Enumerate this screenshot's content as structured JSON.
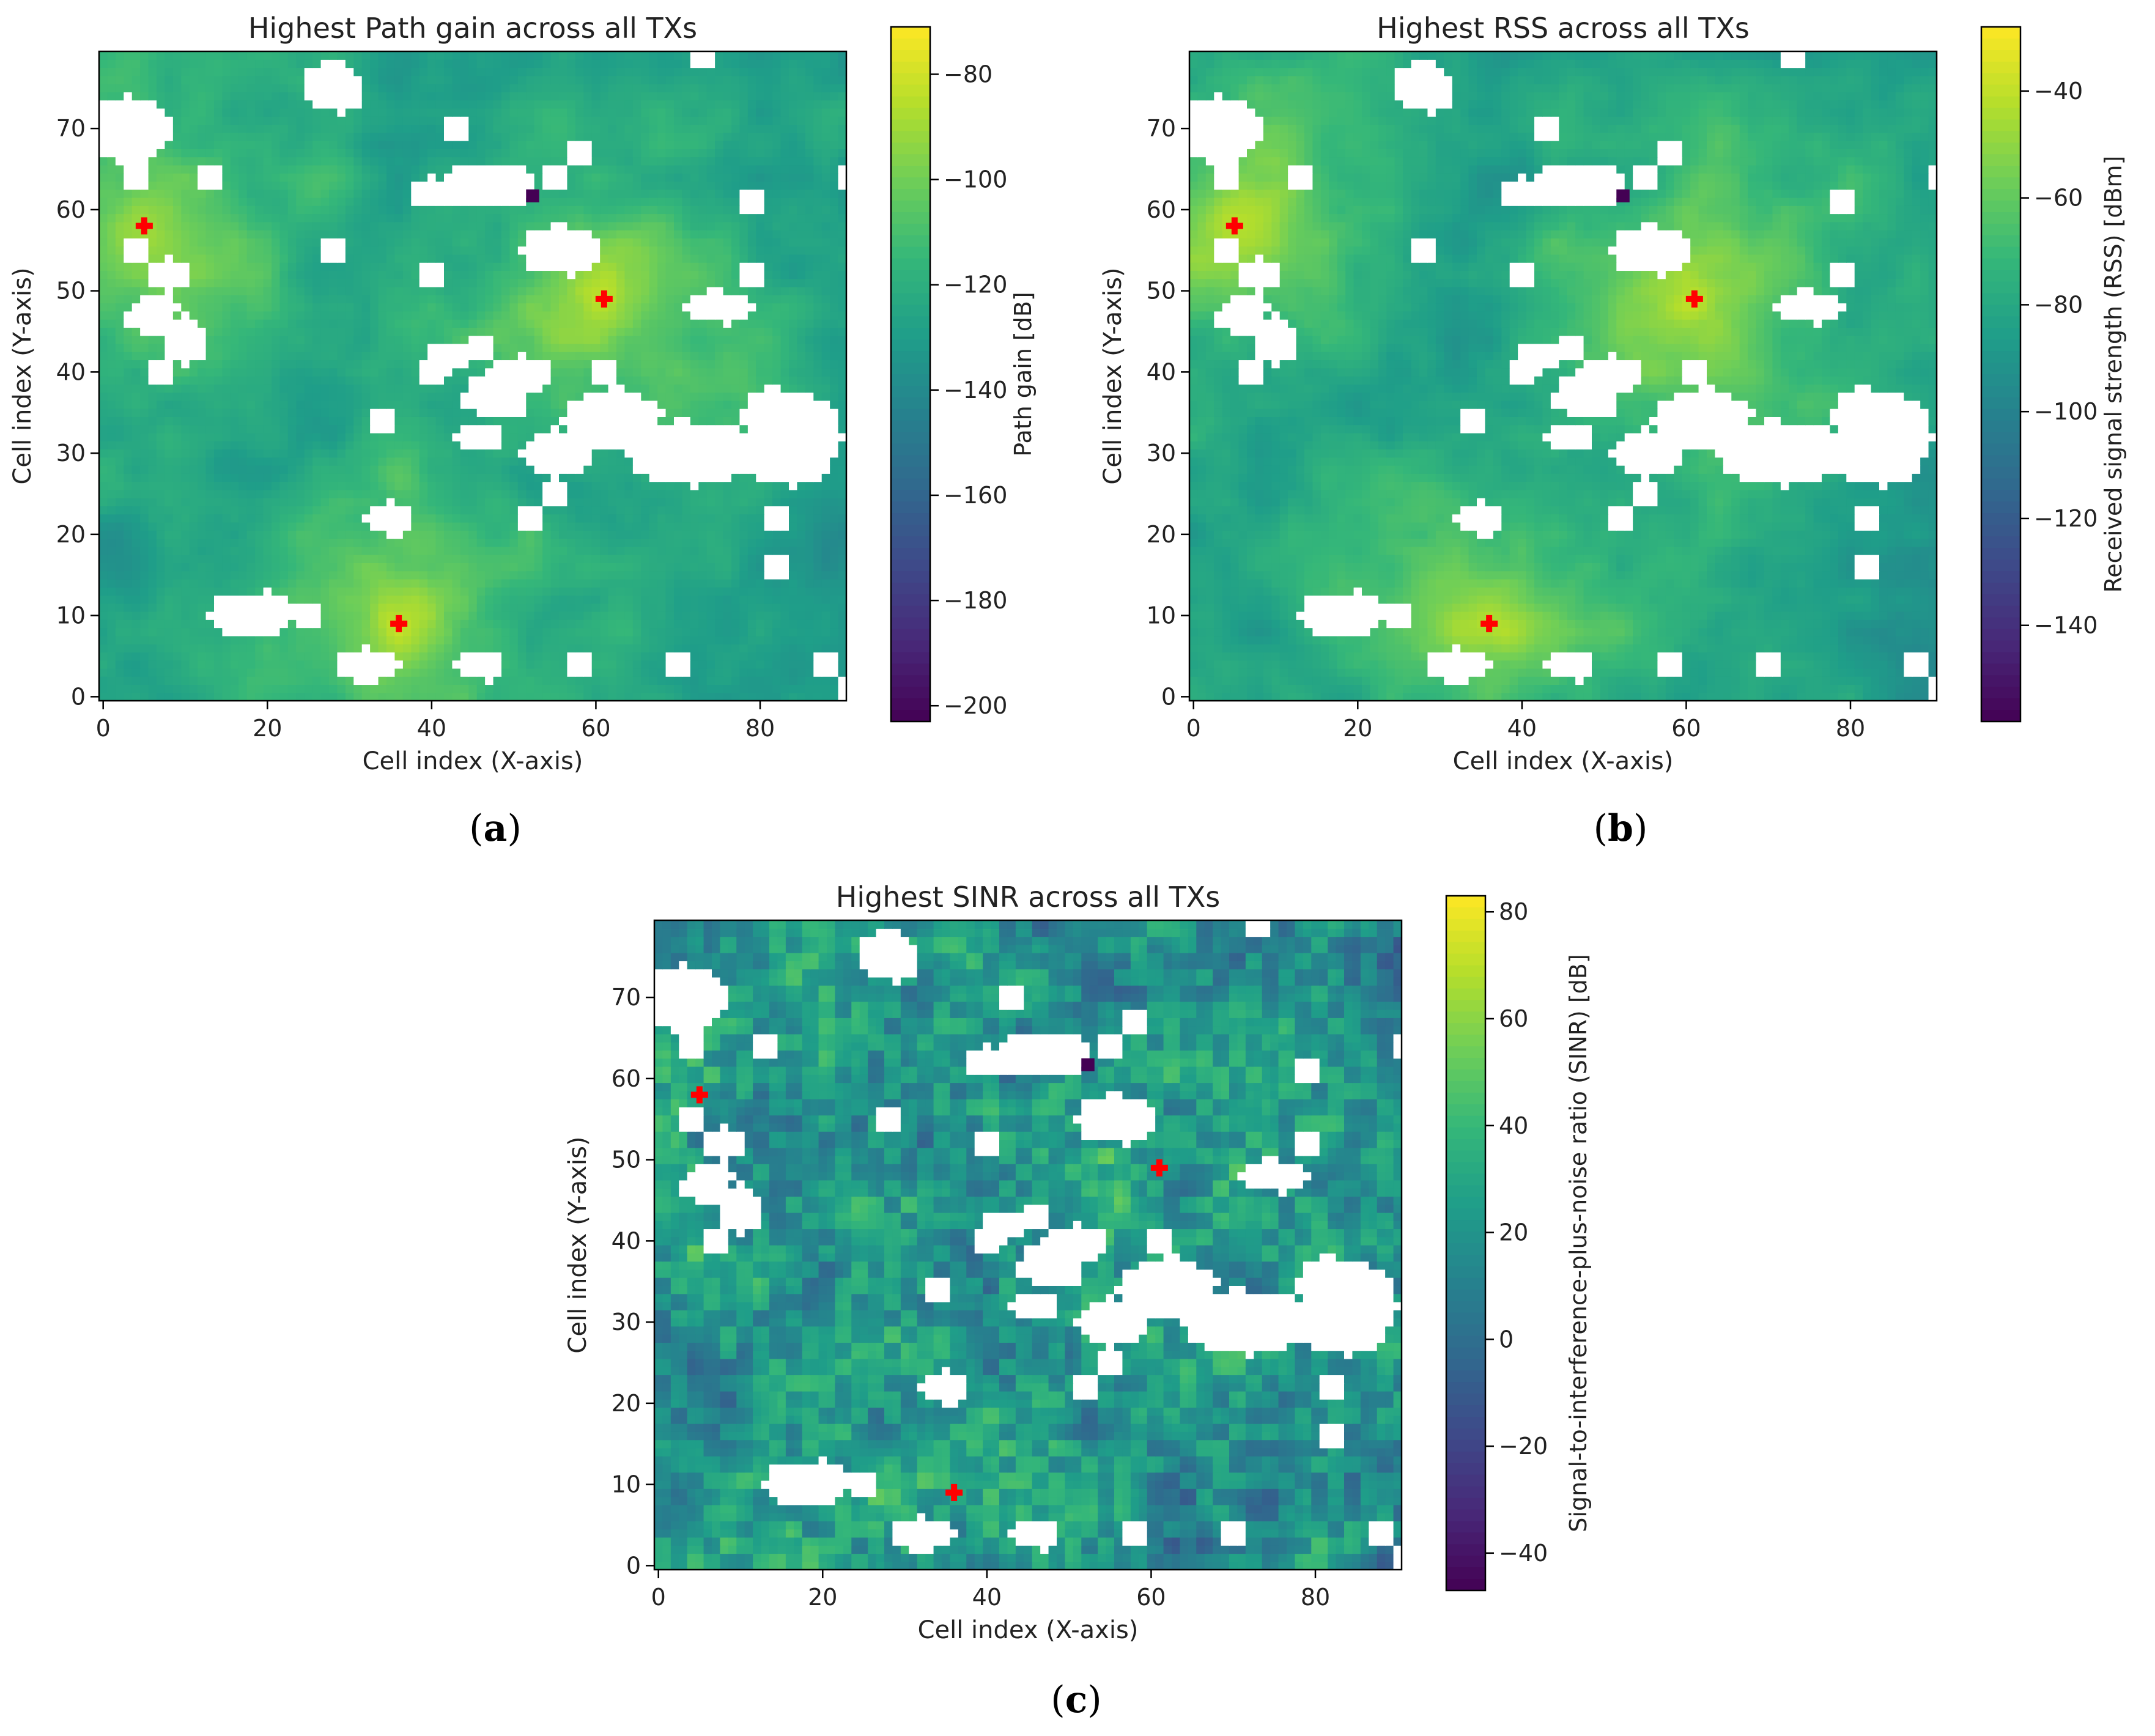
{
  "colors": {
    "viridis": [
      "#440154",
      "#482878",
      "#3e4989",
      "#31688e",
      "#26828e",
      "#1f9e89",
      "#35b779",
      "#6ece58",
      "#b5de2b",
      "#fde725"
    ],
    "marker": "#ff0000",
    "mask": "#ffffff"
  },
  "chart_data": [
    {
      "type": "heatmap",
      "panel_label": "a",
      "title": "Highest Path gain across all TXs",
      "xlabel": "Cell index (X-axis)",
      "ylabel": "Cell index (Y-axis)",
      "xlim": [
        0,
        91
      ],
      "ylim": [
        0,
        80
      ],
      "xticks": [
        0,
        20,
        40,
        60,
        80
      ],
      "yticks": [
        0,
        10,
        20,
        30,
        40,
        50,
        60,
        70
      ],
      "colorbar": {
        "label": "Path gain [dB]",
        "range": [
          -203,
          -71
        ],
        "ticks": [
          -80,
          -100,
          -120,
          -140,
          -160,
          -180,
          -200
        ]
      },
      "value_range": [
        -203,
        -71
      ],
      "tx_markers": [
        [
          5,
          58
        ],
        [
          36,
          9
        ],
        [
          61,
          49
        ]
      ],
      "cmap": "viridis"
    },
    {
      "type": "heatmap",
      "panel_label": "b",
      "title": "Highest RSS across all TXs",
      "xlabel": "Cell index (X-axis)",
      "ylabel": "Cell index (Y-axis)",
      "xlim": [
        0,
        91
      ],
      "ylim": [
        0,
        80
      ],
      "xticks": [
        0,
        20,
        40,
        60,
        80
      ],
      "yticks": [
        0,
        10,
        20,
        30,
        40,
        50,
        60,
        70
      ],
      "colorbar": {
        "label": "Received signal strength (RSS) [dBm]",
        "range": [
          -158,
          -28
        ],
        "ticks": [
          -40,
          -60,
          -80,
          -100,
          -120,
          -140
        ]
      },
      "value_range": [
        -158,
        -28
      ],
      "tx_markers": [
        [
          5,
          58
        ],
        [
          36,
          9
        ],
        [
          61,
          49
        ]
      ],
      "cmap": "viridis"
    },
    {
      "type": "heatmap",
      "panel_label": "c",
      "title": "Highest SINR across all TXs",
      "xlabel": "Cell index (X-axis)",
      "ylabel": "Cell index (Y-axis)",
      "xlim": [
        0,
        91
      ],
      "ylim": [
        0,
        80
      ],
      "xticks": [
        0,
        20,
        40,
        60,
        80
      ],
      "yticks": [
        0,
        10,
        20,
        30,
        40,
        50,
        60,
        70
      ],
      "colorbar": {
        "label": "Signal-to-interference-plus-noise ratio (SINR) [dB]",
        "range": [
          -47,
          83
        ],
        "ticks": [
          80,
          60,
          40,
          20,
          0,
          -20,
          -40
        ]
      },
      "value_range": [
        -47,
        83
      ],
      "tx_markers": [
        [
          5,
          58
        ],
        [
          36,
          9
        ],
        [
          61,
          49
        ]
      ],
      "cmap": "viridis"
    }
  ]
}
